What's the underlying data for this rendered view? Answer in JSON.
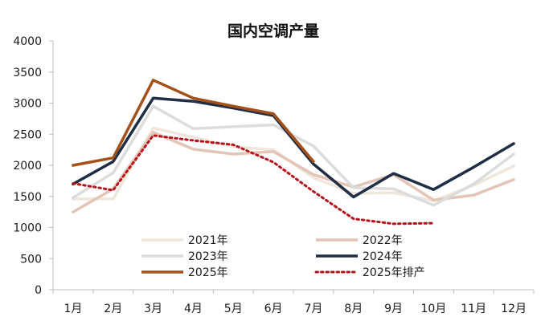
{
  "chart_data": {
    "type": "line",
    "title": "国内空调产量",
    "categories": [
      "1月",
      "2月",
      "3月",
      "4月",
      "5月",
      "6月",
      "7月",
      "8月",
      "9月",
      "10月",
      "11月",
      "12月"
    ],
    "ylim": [
      0,
      4000
    ],
    "yticks": [
      0,
      500,
      1000,
      1500,
      2000,
      2500,
      3000,
      3500,
      4000
    ],
    "grid": false,
    "legend_position": "bottom-center",
    "series": [
      {
        "name": "2021年",
        "color": "#efe6dc",
        "style": "solid",
        "values": [
          1460,
          1460,
          2600,
          2450,
          2300,
          2250,
          1800,
          1550,
          1560,
          1430,
          1680,
          1990
        ]
      },
      {
        "name": "2022年",
        "color": "#e3c4b6",
        "style": "solid",
        "values": [
          1250,
          1620,
          2530,
          2260,
          2180,
          2220,
          1850,
          1650,
          1850,
          1440,
          1520,
          1770
        ]
      },
      {
        "name": "2023年",
        "color": "#dcdcdc",
        "style": "solid",
        "values": [
          1480,
          1880,
          2950,
          2590,
          2620,
          2650,
          2310,
          1640,
          1620,
          1360,
          1700,
          2180
        ]
      },
      {
        "name": "2024年",
        "color": "#1f2d45",
        "style": "solid",
        "values": [
          1700,
          2060,
          3080,
          3030,
          2920,
          2800,
          2020,
          1490,
          1870,
          1610,
          1970,
          2350
        ]
      },
      {
        "name": "2025年",
        "color": "#a3511b",
        "style": "solid",
        "values": [
          2000,
          2120,
          3370,
          3080,
          2950,
          2830,
          2060,
          null,
          null,
          null,
          null,
          null
        ]
      },
      {
        "name": "2025年排产",
        "color": "#b5121b",
        "style": "dotted",
        "values": [
          1710,
          1600,
          2480,
          2400,
          2330,
          2050,
          1580,
          1140,
          1060,
          1070,
          null,
          null
        ]
      }
    ]
  }
}
